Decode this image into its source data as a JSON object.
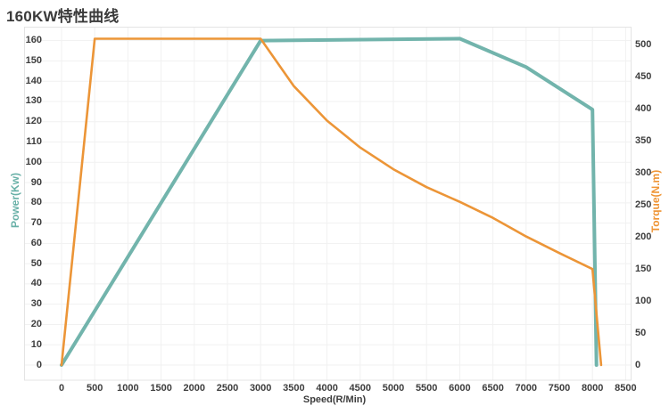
{
  "title": "160KW特性曲线",
  "colors": {
    "power_line": "#72b4ac",
    "torque_line": "#ec9537",
    "grid_line": "#f1f1f1",
    "frame_line": "#e4e4e4",
    "tick_text": "#3d3d3d",
    "title_text": "#3a3a3a"
  },
  "chart_data": {
    "type": "line",
    "title": "160KW特性曲线",
    "xlabel": "Speed(R/Min)",
    "x_ticks": [
      0,
      500,
      1000,
      1500,
      2000,
      2500,
      3000,
      3500,
      4000,
      4500,
      5000,
      5500,
      6000,
      6500,
      7000,
      7500,
      8000,
      8500
    ],
    "x_range": [
      0,
      8500
    ],
    "grid": true,
    "legend_position": "none",
    "y_left": {
      "label": "Power(Kw)",
      "ticks": [
        0,
        10,
        20,
        30,
        40,
        50,
        60,
        70,
        80,
        90,
        100,
        110,
        120,
        130,
        140,
        150,
        160
      ],
      "range": [
        0,
        160
      ],
      "color": "#68b0a7"
    },
    "y_right": {
      "label": "Torque(N.m)",
      "ticks": [
        0,
        50,
        100,
        150,
        200,
        250,
        300,
        350,
        400,
        450,
        500
      ],
      "range": [
        0,
        500
      ],
      "color": "#ef9434"
    },
    "series": [
      {
        "name": "Power(Kw)",
        "axis": "left",
        "color": "#72b4ac",
        "width": 4,
        "points": [
          [
            0,
            0
          ],
          [
            3000,
            160
          ],
          [
            6000,
            161
          ],
          [
            7000,
            147
          ],
          [
            8000,
            126
          ],
          [
            8060,
            0
          ]
        ]
      },
      {
        "name": "Torque(N.m)",
        "axis": "right",
        "color": "#ec9537",
        "width": 2.6,
        "points": [
          [
            0,
            0
          ],
          [
            500,
            510
          ],
          [
            3000,
            510
          ],
          [
            3500,
            436
          ],
          [
            4000,
            382
          ],
          [
            4500,
            340
          ],
          [
            5000,
            306
          ],
          [
            5500,
            278
          ],
          [
            6000,
            255
          ],
          [
            6500,
            230
          ],
          [
            7000,
            201
          ],
          [
            7500,
            175
          ],
          [
            8000,
            150
          ],
          [
            8130,
            0
          ]
        ]
      }
    ]
  }
}
